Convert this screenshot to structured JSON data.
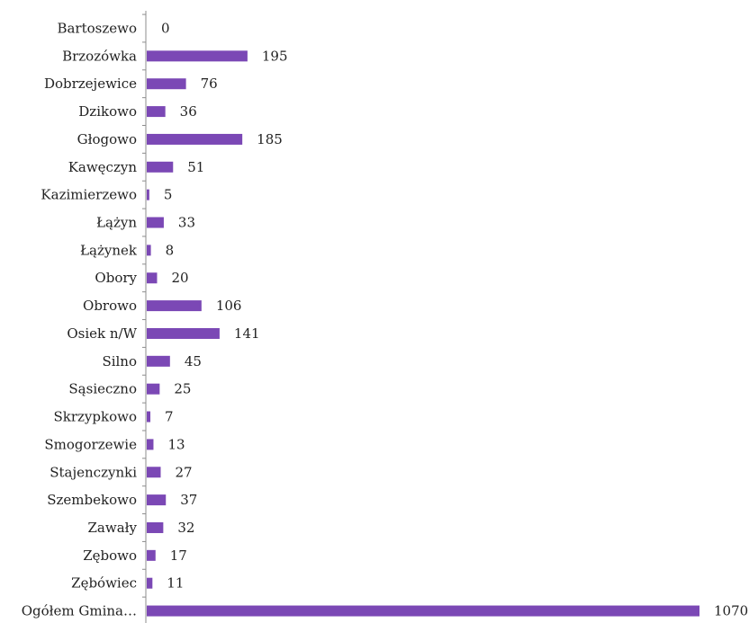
{
  "chart_data": {
    "type": "bar",
    "orientation": "horizontal",
    "categories": [
      "Bartoszewo",
      "Brzozówka",
      "Dobrzejewice",
      "Dzikowo",
      "Głogowo",
      "Kawęczyn",
      "Kazimierzewo",
      "Łążyn",
      "Łążynek",
      "Obory",
      "Obrowo",
      "Osiek n/W",
      "Silno",
      "Sąsieczno",
      "Skrzypkowo",
      "Smogorzewie",
      "Stajenczynki",
      "Szembekowo",
      "Zawały",
      "Zębowo",
      "Zębówiec",
      "Ogółem Gmina…"
    ],
    "values": [
      0,
      195,
      76,
      36,
      185,
      51,
      5,
      33,
      8,
      20,
      106,
      141,
      45,
      25,
      7,
      13,
      27,
      37,
      32,
      17,
      11,
      1070
    ],
    "data_labels": [
      "0",
      "195",
      "76",
      "36",
      "185",
      "51",
      "5",
      "33",
      "8",
      "20",
      "106",
      "141",
      "45",
      "25",
      "7",
      "13",
      "27",
      "37",
      "32",
      "17",
      "11",
      "1070"
    ],
    "bar_color": "#7B48B5",
    "axis_color": "#8C8C8C",
    "xlim": [
      0,
      1070
    ],
    "grid": false,
    "legend": false
  }
}
